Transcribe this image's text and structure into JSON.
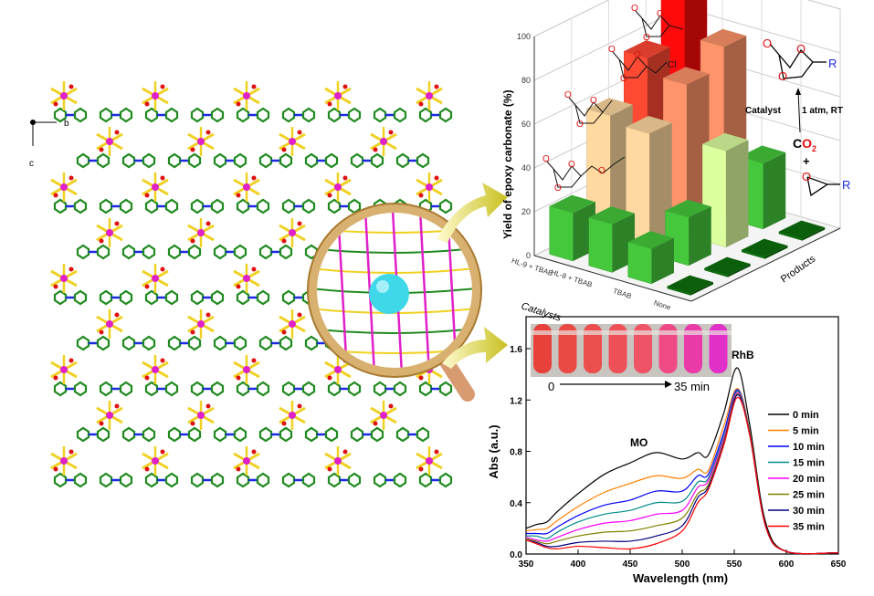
{
  "structure": {
    "axis_b": "b",
    "axis_c": "c",
    "colors": {
      "metal": "#e020c8",
      "ligand": "#f0d020",
      "ring": "#1f8a1f",
      "nitrogen": "#1a2ae0",
      "oxygen": "#e01010",
      "guest": "#3fd8e8"
    }
  },
  "chemistry": {
    "atom_O": "O",
    "atom_Cl": "Cl",
    "group_R": "R",
    "catalyst_label": "Catalyst",
    "conditions": "1 atm, RT",
    "co2_C": "C",
    "co2_O2": "O",
    "co2_sub": "2",
    "plus": "+"
  },
  "chart_data": [
    {
      "type": "bar3d",
      "ylabel": "Yield of epoxy carbonate (%)",
      "xlabel": "Catalysts",
      "zlabel": "Products",
      "ylim": [
        0,
        100
      ],
      "yticks": [
        "0",
        "20",
        "40",
        "60",
        "80",
        "100"
      ],
      "categories": [
        "HL-9 + TBAB",
        "HL-8 + TBAB",
        "TBAB",
        "None"
      ],
      "products_count": 4,
      "values": [
        [
          22,
          58,
          76,
          100
        ],
        [
          22,
          55,
          69,
          78
        ],
        [
          16,
          22,
          44,
          30
        ],
        [
          1,
          1,
          1,
          1
        ]
      ],
      "colors": [
        [
          "#46c83c",
          "#ffd9a0",
          "#ff4a33",
          "#ff0a0a"
        ],
        [
          "#46c83c",
          "#ffd9a0",
          "#ff946a",
          "#ff946a"
        ],
        [
          "#46c83c",
          "#46c83c",
          "#dcffa0",
          "#46c83c"
        ],
        [
          "#0d700d",
          "#0d700d",
          "#0d700d",
          "#0d700d"
        ]
      ],
      "grid": true
    },
    {
      "type": "line",
      "xlabel": "Wavelength (nm)",
      "ylabel": "Abs (a.u.)",
      "xlim": [
        350,
        650
      ],
      "ylim": [
        0,
        1.75
      ],
      "xticks": [
        "350",
        "400",
        "450",
        "500",
        "550",
        "600",
        "650"
      ],
      "yticks": [
        "0.0",
        "0.4",
        "0.8",
        "1.2",
        "1.6"
      ],
      "annotations": {
        "mo": "MO",
        "rhb": "RhB",
        "inset_start": "0",
        "inset_end": "35 min"
      },
      "inset_tube_colors": [
        "#e8403a",
        "#ea4a44",
        "#ec4e4e",
        "#ee5058",
        "#ee5466",
        "#ef4a86",
        "#ea3aa8",
        "#e030c8"
      ],
      "x": [
        350,
        360,
        370,
        380,
        400,
        425,
        450,
        475,
        500,
        515,
        525,
        540,
        553,
        565,
        580,
        600,
        650
      ],
      "series": [
        {
          "name": "0 min",
          "color": "#000000",
          "values": [
            0.2,
            0.23,
            0.25,
            0.33,
            0.47,
            0.62,
            0.71,
            0.79,
            0.74,
            0.79,
            0.77,
            1.1,
            1.45,
            1.0,
            0.25,
            0.02,
            0.01
          ]
        },
        {
          "name": "5 min",
          "color": "#ff8000",
          "values": [
            0.18,
            0.19,
            0.2,
            0.26,
            0.37,
            0.48,
            0.55,
            0.61,
            0.59,
            0.66,
            0.65,
            1.0,
            1.29,
            0.95,
            0.22,
            0.02,
            0.01
          ]
        },
        {
          "name": "10 min",
          "color": "#0000ff",
          "values": [
            0.16,
            0.16,
            0.16,
            0.21,
            0.3,
            0.38,
            0.42,
            0.49,
            0.49,
            0.61,
            0.62,
            0.95,
            1.28,
            0.94,
            0.22,
            0.02,
            0.01
          ]
        },
        {
          "name": "15 min",
          "color": "#008b8b",
          "values": [
            0.14,
            0.14,
            0.12,
            0.17,
            0.25,
            0.31,
            0.34,
            0.4,
            0.41,
            0.56,
            0.59,
            0.92,
            1.27,
            0.94,
            0.22,
            0.02,
            0.01
          ]
        },
        {
          "name": "20 min",
          "color": "#ff00ff",
          "values": [
            0.13,
            0.11,
            0.1,
            0.13,
            0.19,
            0.24,
            0.26,
            0.31,
            0.34,
            0.52,
            0.57,
            0.9,
            1.26,
            0.93,
            0.22,
            0.02,
            0.01
          ]
        },
        {
          "name": "25 min",
          "color": "#808000",
          "values": [
            0.12,
            0.1,
            0.08,
            0.1,
            0.14,
            0.17,
            0.18,
            0.22,
            0.28,
            0.47,
            0.54,
            0.88,
            1.25,
            0.93,
            0.22,
            0.02,
            0.01
          ]
        },
        {
          "name": "30 min",
          "color": "#000080",
          "values": [
            0.11,
            0.09,
            0.06,
            0.06,
            0.09,
            0.1,
            0.1,
            0.14,
            0.22,
            0.44,
            0.52,
            0.86,
            1.24,
            0.92,
            0.22,
            0.02,
            0.01
          ]
        },
        {
          "name": "35 min",
          "color": "#ff0000",
          "values": [
            0.11,
            0.08,
            0.05,
            0.04,
            0.06,
            0.05,
            0.04,
            0.08,
            0.18,
            0.4,
            0.5,
            0.85,
            1.22,
            0.92,
            0.22,
            0.02,
            0.01
          ]
        }
      ]
    }
  ]
}
